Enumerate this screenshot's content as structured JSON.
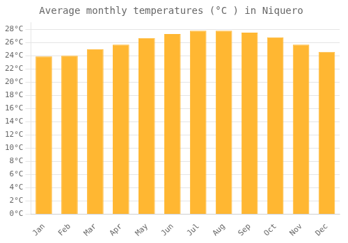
{
  "chart_data": {
    "type": "bar",
    "title": "Average monthly temperatures (°C ) in Niquero",
    "categories": [
      "Jan",
      "Feb",
      "Mar",
      "Apr",
      "May",
      "Jun",
      "Jul",
      "Aug",
      "Sep",
      "Oct",
      "Nov",
      "Dec"
    ],
    "values": [
      23.9,
      24.0,
      25.0,
      25.7,
      26.7,
      27.3,
      27.8,
      27.8,
      27.5,
      26.8,
      25.7,
      24.6
    ],
    "color": "#FFB732",
    "ylim": [
      0,
      29
    ],
    "yticks": [
      {
        "value": 0,
        "label": "0°C"
      },
      {
        "value": 2,
        "label": "2°C"
      },
      {
        "value": 4,
        "label": "4°C"
      },
      {
        "value": 6,
        "label": "6°C"
      },
      {
        "value": 8,
        "label": "8°C"
      },
      {
        "value": 10,
        "label": "10°C"
      },
      {
        "value": 12,
        "label": "12°C"
      },
      {
        "value": 14,
        "label": "14°C"
      },
      {
        "value": 16,
        "label": "16°C"
      },
      {
        "value": 18,
        "label": "18°C"
      },
      {
        "value": 20,
        "label": "20°C"
      },
      {
        "value": 22,
        "label": "22°C"
      },
      {
        "value": 24,
        "label": "24°C"
      },
      {
        "value": 26,
        "label": "26°C"
      },
      {
        "value": 28,
        "label": "28°C"
      }
    ],
    "grid": true
  }
}
